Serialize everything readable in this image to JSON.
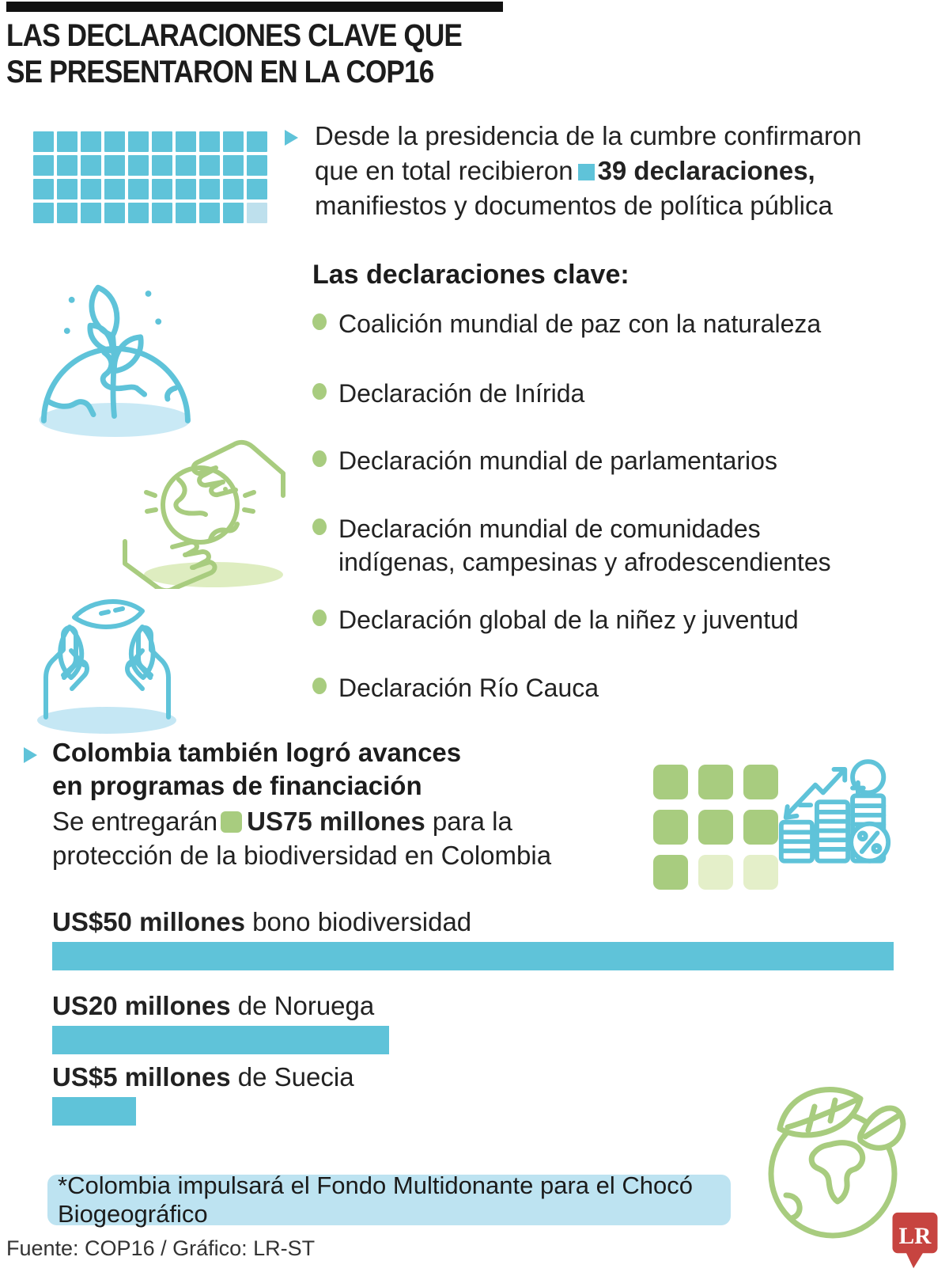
{
  "title": {
    "line1": "LAS DECLARACIONES CLAVE QUE",
    "line2": "SE PRESENTARON EN LA COP16"
  },
  "intro": {
    "line1": "Desde la presidencia de la cumbre confirmaron",
    "line2_before": "que en total recibieron",
    "line2_highlight": "39 declaraciones,",
    "line3": "manifiestos y documentos de política pública"
  },
  "declarations": {
    "heading": "Las declaraciones clave:",
    "items": [
      "Coalición mundial de paz con la naturaleza",
      "Declaración de Inírida",
      "Declaración mundial de parlamentarios",
      "Declaración mundial de comunidades indígenas, campesinas y afrodescendientes",
      "Declaración global de la niñez y juventud",
      "Declaración Río Cauca"
    ]
  },
  "financing": {
    "heading_line1": "Colombia también logró avances",
    "heading_line2": "en programas de financiación",
    "para_before": "Se entregarán",
    "para_highlight": "US75 millones",
    "para_after_line1": "para la",
    "para_line2": "protección de la biodiversidad en Colombia"
  },
  "note": "*Colombia impulsará el Fondo Multidonante para el Chocó Biogeográfico",
  "footer": "Fuente: COP16 / Gráfico: LR-ST",
  "logo": {
    "text": "LR"
  },
  "colors": {
    "teal": "#5FC3D9",
    "teal_light": "#BEE0ED",
    "teal_pale": "#C9E9F5",
    "green": "#A8CC7F",
    "green_light": "#DEEDC0",
    "green_pale": "#E4EFC9",
    "note_bg": "#BDE3F1",
    "logo_red": "#C74440",
    "ink": "#1C1C1C"
  },
  "chart_data": [
    {
      "type": "waffle",
      "name": "declarations-waffle",
      "rows": 4,
      "cols": 10,
      "total": 40,
      "filled": 39,
      "label": "39 declaraciones, manifiestos y documentos de política pública"
    },
    {
      "type": "waffle",
      "name": "financing-waffle",
      "rows": 3,
      "cols": 3,
      "total": 9,
      "filled": 7,
      "label": "US75 millones para la protección de la biodiversidad en Colombia"
    },
    {
      "type": "bar",
      "name": "financing-bars",
      "categories": [
        "bono biodiversidad",
        "de Noruega",
        "de Suecia"
      ],
      "values": [
        50,
        20,
        5
      ],
      "xlim": [
        0,
        50
      ],
      "unit": "US$ millones",
      "label_parts": [
        {
          "bold": "US$50 millones",
          "rest": "bono biodiversidad"
        },
        {
          "bold": "US20 millones",
          "rest": "de Noruega"
        },
        {
          "bold": "US$5 millones",
          "rest": "de Suecia"
        }
      ]
    }
  ]
}
